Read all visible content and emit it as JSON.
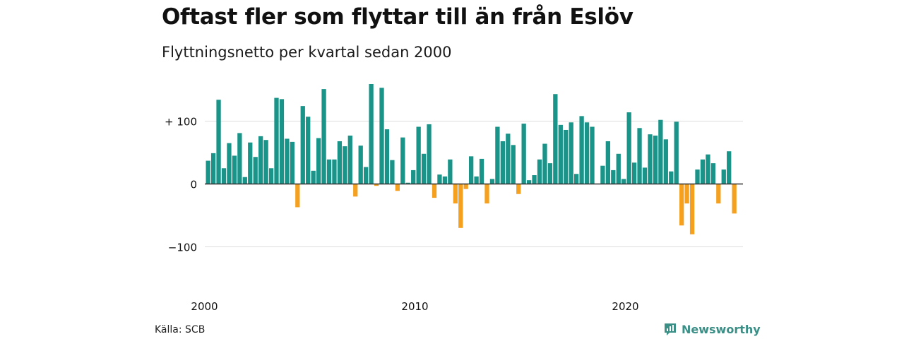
{
  "title": "Oftast fler som flyttar till än från Eslöv",
  "subtitle": "Flyttningsnetto per kvartal sedan 2000",
  "source": "Källa: SCB",
  "brand": {
    "name": "Newsworthy",
    "icon": "newsworthy-logo-icon"
  },
  "colors": {
    "positive": "#1a9488",
    "negative": "#f5a11f",
    "grid": "#dddddd",
    "baseline": "#333333",
    "brand": "#3a8f86"
  },
  "chart_data": {
    "type": "bar",
    "xlabel": "",
    "ylabel": "",
    "ylim": [
      -150,
      165
    ],
    "y_ticks": [
      {
        "value": 100,
        "label": "+ 100"
      },
      {
        "value": 0,
        "label": "0"
      },
      {
        "value": -100,
        "label": "−100"
      }
    ],
    "x_ticks": [
      {
        "year": 2000,
        "label": "2000"
      },
      {
        "year": 2010,
        "label": "2010"
      },
      {
        "year": 2020,
        "label": "2020"
      }
    ],
    "start": "2000 Q1",
    "grid": true,
    "values": [
      37,
      49,
      134,
      25,
      65,
      45,
      81,
      11,
      66,
      43,
      76,
      70,
      25,
      137,
      135,
      72,
      67,
      -37,
      124,
      107,
      21,
      73,
      151,
      39,
      39,
      68,
      60,
      77,
      -20,
      61,
      27,
      159,
      -3,
      153,
      87,
      38,
      -11,
      74,
      2,
      22,
      91,
      48,
      95,
      -22,
      15,
      12,
      39,
      -31,
      -70,
      -8,
      44,
      12,
      40,
      -31,
      8,
      91,
      68,
      80,
      62,
      -16,
      96,
      6,
      14,
      39,
      64,
      33,
      143,
      94,
      86,
      98,
      16,
      108,
      98,
      91,
      0,
      29,
      68,
      22,
      48,
      8,
      114,
      34,
      89,
      26,
      79,
      77,
      102,
      71,
      20,
      99,
      -66,
      -31,
      -80,
      23,
      39,
      47,
      33,
      -31,
      23,
      52,
      -47
    ]
  }
}
